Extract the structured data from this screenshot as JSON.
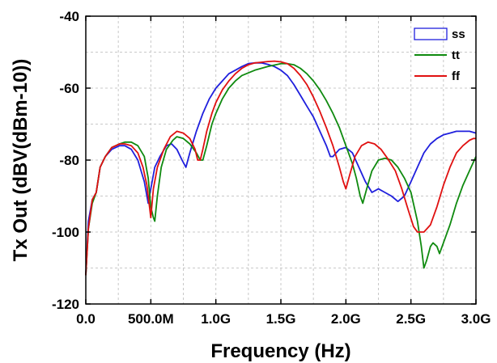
{
  "chart_data": {
    "type": "line",
    "xlabel": "Frequency (Hz)",
    "ylabel": "Tx Out (dBV(dBm-10))",
    "xlim": [
      0,
      3.0
    ],
    "ylim": [
      -120,
      -40
    ],
    "grid": true,
    "legend_position": "top-right",
    "x_ticks": [
      {
        "value": 0.0,
        "label": "0.0"
      },
      {
        "value": 0.5,
        "label": "500.0M"
      },
      {
        "value": 1.0,
        "label": "1.0G"
      },
      {
        "value": 1.5,
        "label": "1.5G"
      },
      {
        "value": 2.0,
        "label": "2.0G"
      },
      {
        "value": 2.5,
        "label": "2.5G"
      },
      {
        "value": 3.0,
        "label": "3.0G"
      }
    ],
    "y_ticks": [
      {
        "value": -40,
        "label": "-40"
      },
      {
        "value": -60,
        "label": "-60"
      },
      {
        "value": -80,
        "label": "-80"
      },
      {
        "value": -100,
        "label": "-100"
      },
      {
        "value": -120,
        "label": "-120"
      }
    ],
    "series": [
      {
        "name": "ss",
        "color": "#1f1fdd",
        "points": [
          [
            0.0,
            -112
          ],
          [
            0.02,
            -97
          ],
          [
            0.05,
            -91
          ],
          [
            0.08,
            -89
          ],
          [
            0.11,
            -82
          ],
          [
            0.15,
            -79
          ],
          [
            0.2,
            -77
          ],
          [
            0.26,
            -76
          ],
          [
            0.3,
            -76
          ],
          [
            0.35,
            -77
          ],
          [
            0.4,
            -80
          ],
          [
            0.45,
            -86
          ],
          [
            0.48,
            -92
          ],
          [
            0.5,
            -88
          ],
          [
            0.53,
            -82
          ],
          [
            0.57,
            -79
          ],
          [
            0.62,
            -76
          ],
          [
            0.66,
            -75.5
          ],
          [
            0.7,
            -77
          ],
          [
            0.74,
            -80
          ],
          [
            0.77,
            -82
          ],
          [
            0.8,
            -78
          ],
          [
            0.85,
            -72
          ],
          [
            0.9,
            -67
          ],
          [
            0.95,
            -63
          ],
          [
            1.0,
            -60
          ],
          [
            1.05,
            -58
          ],
          [
            1.1,
            -56
          ],
          [
            1.15,
            -55
          ],
          [
            1.2,
            -54
          ],
          [
            1.25,
            -53.2
          ],
          [
            1.3,
            -53
          ],
          [
            1.35,
            -53
          ],
          [
            1.4,
            -53.4
          ],
          [
            1.45,
            -54
          ],
          [
            1.5,
            -55
          ],
          [
            1.55,
            -56.5
          ],
          [
            1.6,
            -59
          ],
          [
            1.65,
            -62
          ],
          [
            1.7,
            -65
          ],
          [
            1.75,
            -68
          ],
          [
            1.8,
            -72
          ],
          [
            1.85,
            -76
          ],
          [
            1.88,
            -79
          ],
          [
            1.9,
            -79
          ],
          [
            1.95,
            -77
          ],
          [
            2.0,
            -76.5
          ],
          [
            2.05,
            -78
          ],
          [
            2.1,
            -82
          ],
          [
            2.15,
            -86
          ],
          [
            2.2,
            -89
          ],
          [
            2.25,
            -88
          ],
          [
            2.3,
            -89
          ],
          [
            2.35,
            -90
          ],
          [
            2.4,
            -91.5
          ],
          [
            2.45,
            -90
          ],
          [
            2.5,
            -86
          ],
          [
            2.55,
            -82
          ],
          [
            2.6,
            -78
          ],
          [
            2.65,
            -75.5
          ],
          [
            2.7,
            -74
          ],
          [
            2.75,
            -73
          ],
          [
            2.8,
            -72.5
          ],
          [
            2.85,
            -72
          ],
          [
            2.9,
            -72
          ],
          [
            2.95,
            -72
          ],
          [
            3.0,
            -72.5
          ]
        ]
      },
      {
        "name": "tt",
        "color": "#0f8a0f",
        "points": [
          [
            0.0,
            -112
          ],
          [
            0.02,
            -99
          ],
          [
            0.05,
            -92
          ],
          [
            0.08,
            -89
          ],
          [
            0.11,
            -82
          ],
          [
            0.15,
            -79
          ],
          [
            0.2,
            -76.5
          ],
          [
            0.26,
            -75.5
          ],
          [
            0.3,
            -75
          ],
          [
            0.35,
            -75
          ],
          [
            0.4,
            -76
          ],
          [
            0.45,
            -79
          ],
          [
            0.48,
            -85
          ],
          [
            0.5,
            -93
          ],
          [
            0.52,
            -96
          ],
          [
            0.53,
            -97
          ],
          [
            0.55,
            -90
          ],
          [
            0.58,
            -82
          ],
          [
            0.62,
            -77
          ],
          [
            0.67,
            -74.5
          ],
          [
            0.7,
            -73.5
          ],
          [
            0.75,
            -74
          ],
          [
            0.8,
            -75.5
          ],
          [
            0.85,
            -78
          ],
          [
            0.88,
            -80
          ],
          [
            0.9,
            -80
          ],
          [
            0.93,
            -76
          ],
          [
            0.97,
            -70
          ],
          [
            1.0,
            -67
          ],
          [
            1.05,
            -63
          ],
          [
            1.1,
            -60
          ],
          [
            1.15,
            -58
          ],
          [
            1.2,
            -56.5
          ],
          [
            1.3,
            -55
          ],
          [
            1.4,
            -54
          ],
          [
            1.5,
            -53.2
          ],
          [
            1.55,
            -53.2
          ],
          [
            1.6,
            -53.5
          ],
          [
            1.65,
            -54.5
          ],
          [
            1.7,
            -56
          ],
          [
            1.75,
            -58
          ],
          [
            1.8,
            -60.5
          ],
          [
            1.85,
            -63.5
          ],
          [
            1.9,
            -67
          ],
          [
            1.95,
            -71
          ],
          [
            2.0,
            -76
          ],
          [
            2.05,
            -81
          ],
          [
            2.08,
            -85
          ],
          [
            2.11,
            -90
          ],
          [
            2.13,
            -92
          ],
          [
            2.16,
            -88
          ],
          [
            2.2,
            -83
          ],
          [
            2.25,
            -80
          ],
          [
            2.3,
            -79.5
          ],
          [
            2.35,
            -80
          ],
          [
            2.4,
            -82
          ],
          [
            2.45,
            -85
          ],
          [
            2.5,
            -89
          ],
          [
            2.55,
            -97
          ],
          [
            2.58,
            -104
          ],
          [
            2.6,
            -110
          ],
          [
            2.62,
            -108
          ],
          [
            2.65,
            -104
          ],
          [
            2.67,
            -103
          ],
          [
            2.7,
            -104
          ],
          [
            2.72,
            -106
          ],
          [
            2.75,
            -103
          ],
          [
            2.8,
            -98
          ],
          [
            2.85,
            -92
          ],
          [
            2.9,
            -87
          ],
          [
            2.95,
            -83
          ],
          [
            3.0,
            -79
          ]
        ]
      },
      {
        "name": "ff",
        "color": "#e01010",
        "points": [
          [
            0.0,
            -112
          ],
          [
            0.02,
            -99
          ],
          [
            0.05,
            -91
          ],
          [
            0.08,
            -89
          ],
          [
            0.11,
            -82
          ],
          [
            0.15,
            -79
          ],
          [
            0.2,
            -76.5
          ],
          [
            0.26,
            -75.5
          ],
          [
            0.3,
            -75.5
          ],
          [
            0.35,
            -76
          ],
          [
            0.4,
            -78
          ],
          [
            0.44,
            -82
          ],
          [
            0.47,
            -87
          ],
          [
            0.49,
            -93
          ],
          [
            0.5,
            -96
          ],
          [
            0.52,
            -88
          ],
          [
            0.55,
            -82
          ],
          [
            0.6,
            -77
          ],
          [
            0.65,
            -73.5
          ],
          [
            0.7,
            -72
          ],
          [
            0.75,
            -72.5
          ],
          [
            0.8,
            -74
          ],
          [
            0.84,
            -77
          ],
          [
            0.86,
            -80
          ],
          [
            0.88,
            -80
          ],
          [
            0.9,
            -77
          ],
          [
            0.93,
            -72
          ],
          [
            0.97,
            -67
          ],
          [
            1.0,
            -64
          ],
          [
            1.05,
            -60.5
          ],
          [
            1.1,
            -58
          ],
          [
            1.15,
            -56
          ],
          [
            1.2,
            -54.5
          ],
          [
            1.25,
            -53.5
          ],
          [
            1.3,
            -53
          ],
          [
            1.35,
            -52.8
          ],
          [
            1.4,
            -52.6
          ],
          [
            1.45,
            -52.5
          ],
          [
            1.5,
            -52.7
          ],
          [
            1.55,
            -53.2
          ],
          [
            1.6,
            -54.5
          ],
          [
            1.65,
            -56.5
          ],
          [
            1.7,
            -59
          ],
          [
            1.75,
            -62.5
          ],
          [
            1.8,
            -66.5
          ],
          [
            1.85,
            -71
          ],
          [
            1.9,
            -76
          ],
          [
            1.95,
            -82
          ],
          [
            1.98,
            -86
          ],
          [
            2.0,
            -88
          ],
          [
            2.03,
            -84
          ],
          [
            2.07,
            -79
          ],
          [
            2.12,
            -76
          ],
          [
            2.17,
            -75
          ],
          [
            2.22,
            -75.5
          ],
          [
            2.27,
            -77
          ],
          [
            2.32,
            -79.5
          ],
          [
            2.38,
            -83
          ],
          [
            2.43,
            -88
          ],
          [
            2.48,
            -94
          ],
          [
            2.52,
            -98.5
          ],
          [
            2.55,
            -100
          ],
          [
            2.6,
            -100
          ],
          [
            2.65,
            -98
          ],
          [
            2.7,
            -93
          ],
          [
            2.75,
            -87
          ],
          [
            2.8,
            -82
          ],
          [
            2.85,
            -78
          ],
          [
            2.9,
            -76
          ],
          [
            2.95,
            -74.5
          ],
          [
            2.98,
            -74
          ],
          [
            3.0,
            -74
          ]
        ]
      }
    ]
  }
}
